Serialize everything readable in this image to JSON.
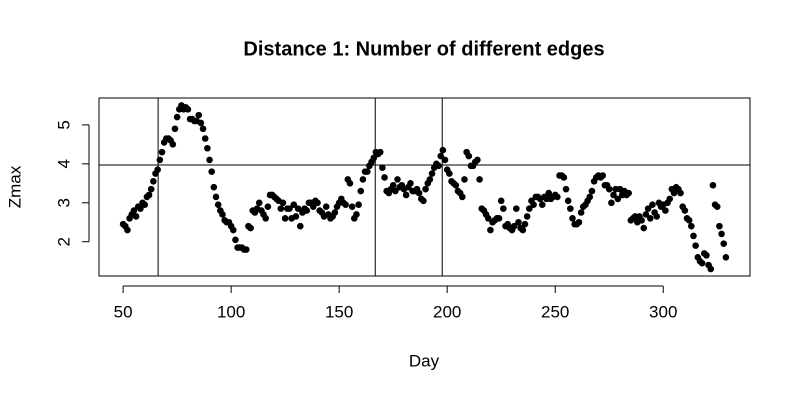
{
  "chart_data": {
    "type": "scatter",
    "title": "Distance 1: Number of different edges",
    "x_label": "Day",
    "y_label": "Zmax",
    "color": "#000000",
    "x": [
      50,
      51,
      52,
      53,
      54,
      55,
      56,
      57,
      58,
      59,
      60,
      61,
      62,
      63,
      64,
      65,
      66,
      67,
      68,
      69,
      70,
      71,
      72,
      73,
      74,
      75,
      76,
      77,
      78,
      79,
      80,
      81,
      82,
      83,
      84,
      85,
      86,
      87,
      88,
      89,
      90,
      91,
      92,
      93,
      94,
      95,
      96,
      97,
      98,
      99,
      100,
      101,
      102,
      103,
      104,
      105,
      106,
      107,
      108,
      109,
      110,
      111,
      112,
      113,
      114,
      115,
      116,
      117,
      118,
      119,
      120,
      121,
      122,
      123,
      124,
      125,
      126,
      127,
      128,
      129,
      130,
      131,
      132,
      133,
      134,
      135,
      136,
      137,
      138,
      139,
      140,
      141,
      142,
      143,
      144,
      145,
      146,
      147,
      148,
      149,
      150,
      151,
      152,
      153,
      154,
      155,
      156,
      157,
      158,
      159,
      160,
      161,
      162,
      163,
      164,
      165,
      166,
      167,
      168,
      169,
      170,
      171,
      172,
      173,
      174,
      175,
      176,
      177,
      178,
      179,
      180,
      181,
      182,
      183,
      184,
      185,
      186,
      187,
      188,
      189,
      190,
      191,
      192,
      193,
      194,
      195,
      196,
      197,
      198,
      199,
      200,
      201,
      202,
      203,
      204,
      205,
      206,
      207,
      208,
      209,
      210,
      211,
      212,
      213,
      214,
      215,
      216,
      217,
      218,
      219,
      220,
      221,
      222,
      223,
      224,
      225,
      226,
      227,
      228,
      229,
      230,
      231,
      232,
      233,
      234,
      235,
      236,
      237,
      238,
      239,
      240,
      241,
      242,
      243,
      244,
      245,
      246,
      247,
      248,
      249,
      250,
      251,
      252,
      253,
      254,
      255,
      256,
      257,
      258,
      259,
      260,
      261,
      262,
      263,
      264,
      265,
      266,
      267,
      268,
      269,
      270,
      271,
      272,
      273,
      274,
      275,
      276,
      277,
      278,
      279,
      280,
      281,
      282,
      283,
      284,
      285,
      286,
      287,
      288,
      289,
      290,
      291,
      292,
      293,
      294,
      295,
      296,
      297,
      298,
      299,
      300,
      301,
      302,
      303,
      304,
      305,
      306,
      307,
      308,
      309,
      310,
      311,
      312,
      313,
      314,
      315,
      316,
      317,
      318,
      319,
      320,
      321,
      322,
      323,
      324,
      325,
      326,
      327,
      328,
      329
    ],
    "values": [
      2.45,
      2.4,
      2.3,
      2.6,
      2.7,
      2.8,
      2.65,
      2.9,
      2.85,
      3.0,
      2.95,
      3.15,
      3.2,
      3.35,
      3.55,
      3.75,
      3.85,
      4.1,
      4.3,
      4.55,
      4.65,
      4.65,
      4.6,
      4.5,
      4.9,
      5.2,
      5.4,
      5.5,
      5.4,
      5.45,
      5.4,
      5.15,
      5.15,
      5.1,
      5.1,
      5.25,
      5.05,
      4.9,
      4.65,
      4.4,
      4.1,
      3.8,
      3.4,
      3.15,
      2.95,
      2.8,
      2.7,
      2.55,
      2.5,
      2.5,
      2.4,
      2.3,
      2.05,
      1.85,
      1.85,
      1.85,
      1.8,
      1.8,
      2.4,
      2.35,
      2.8,
      2.75,
      2.85,
      3.0,
      2.8,
      2.7,
      2.6,
      2.9,
      3.2,
      3.2,
      3.15,
      3.1,
      3.05,
      2.85,
      3.0,
      2.6,
      2.85,
      2.85,
      2.6,
      2.95,
      2.65,
      2.85,
      2.4,
      2.75,
      2.85,
      2.8,
      3.0,
      3.0,
      2.9,
      3.05,
      3.0,
      2.8,
      2.75,
      2.65,
      2.9,
      2.7,
      2.6,
      2.65,
      2.75,
      2.9,
      3.0,
      3.1,
      3.0,
      2.95,
      3.6,
      3.5,
      2.9,
      2.6,
      2.7,
      2.95,
      3.3,
      3.6,
      3.8,
      3.8,
      3.95,
      4.05,
      4.15,
      4.3,
      4.25,
      4.3,
      3.9,
      3.65,
      3.3,
      3.25,
      3.35,
      3.45,
      3.3,
      3.6,
      3.4,
      3.45,
      3.35,
      3.2,
      3.4,
      3.5,
      3.3,
      3.3,
      3.35,
      3.25,
      3.1,
      3.05,
      3.35,
      3.5,
      3.6,
      3.75,
      3.9,
      4.0,
      3.95,
      4.2,
      4.35,
      4.1,
      3.85,
      3.75,
      3.55,
      3.5,
      3.45,
      3.3,
      3.25,
      3.15,
      3.6,
      4.3,
      4.2,
      3.95,
      3.95,
      4.05,
      4.1,
      3.6,
      2.85,
      2.8,
      2.7,
      2.6,
      2.3,
      2.5,
      2.55,
      2.6,
      2.6,
      3.05,
      2.85,
      2.4,
      2.45,
      2.35,
      2.3,
      2.4,
      2.85,
      2.5,
      2.35,
      2.3,
      2.45,
      2.65,
      2.85,
      3.05,
      2.95,
      3.15,
      3.15,
      3.1,
      2.95,
      3.15,
      3.1,
      3.25,
      3.1,
      3.15,
      3.2,
      3.15,
      3.7,
      3.7,
      3.65,
      3.35,
      3.05,
      2.85,
      2.6,
      2.45,
      2.45,
      2.5,
      2.75,
      2.9,
      2.95,
      3.05,
      3.15,
      3.3,
      3.55,
      3.65,
      3.7,
      3.65,
      3.7,
      3.45,
      3.45,
      3.35,
      3.0,
      3.2,
      3.35,
      3.1,
      3.35,
      3.2,
      3.3,
      3.2,
      3.25,
      2.55,
      2.6,
      2.65,
      2.5,
      2.65,
      2.55,
      2.35,
      2.7,
      2.85,
      2.6,
      2.95,
      2.75,
      2.65,
      3.0,
      2.9,
      2.95,
      2.8,
      3.0,
      3.1,
      3.35,
      3.25,
      3.4,
      3.35,
      3.25,
      2.9,
      2.8,
      2.6,
      2.55,
      2.4,
      2.15,
      1.9,
      1.6,
      1.5,
      1.45,
      1.7,
      1.65,
      1.4,
      1.3,
      3.45,
      2.95,
      2.9,
      2.4,
      2.2,
      1.95,
      1.6
    ],
    "xlim": [
      38.84,
      340.16
    ],
    "ylim": [
      1.12,
      5.69
    ],
    "xticks": [
      50,
      100,
      150,
      200,
      250,
      300
    ],
    "yticks": [
      2,
      3,
      4,
      5
    ],
    "hlines": [
      3.97
    ],
    "vlines": [
      66.2,
      166.7,
      197.7
    ]
  }
}
